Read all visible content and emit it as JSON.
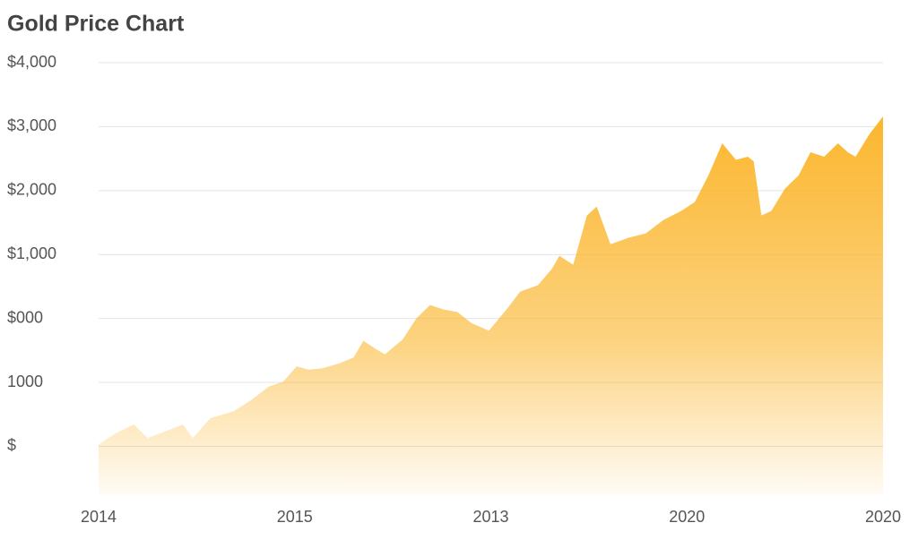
{
  "chart_data": {
    "type": "area",
    "title": "Gold Price Chart",
    "color": "#fbb52a",
    "x": [
      0,
      0.09,
      0.18,
      0.25,
      0.37,
      0.43,
      0.48,
      0.57,
      0.69,
      0.78,
      0.87,
      0.94,
      1.01,
      1.07,
      1.14,
      1.23,
      1.3,
      1.35,
      1.42,
      1.46,
      1.55,
      1.62,
      1.69,
      1.76,
      1.83,
      1.9,
      1.99,
      2.08,
      2.15,
      2.24,
      2.31,
      2.35,
      2.42,
      2.49,
      2.54,
      2.61,
      2.7,
      2.79,
      2.88,
      2.97,
      3.04,
      3.11,
      3.18,
      3.25,
      3.31,
      3.34,
      3.38,
      3.43,
      3.5,
      3.57,
      3.63,
      3.7,
      3.77,
      3.82,
      3.86,
      3.93,
      4
    ],
    "values": [
      -1970,
      -1790,
      -1660,
      -1870,
      -1730,
      -1660,
      -1870,
      -1560,
      -1450,
      -1270,
      -1060,
      -990,
      -750,
      -800,
      -780,
      -700,
      -610,
      -350,
      -490,
      -560,
      -330,
      0,
      210,
      140,
      100,
      -70,
      -190,
      140,
      420,
      520,
      770,
      980,
      840,
      1610,
      1750,
      1160,
      1260,
      1330,
      1540,
      1680,
      1820,
      2240,
      2740,
      2480,
      2530,
      2460,
      1610,
      1680,
      2030,
      2240,
      2600,
      2530,
      2740,
      2600,
      2530,
      2880,
      3160
    ],
    "xlim": [
      0,
      4
    ],
    "xticks": [
      {
        "value": 0,
        "label": "2014"
      },
      {
        "value": 1,
        "label": "2015"
      },
      {
        "value": 2,
        "label": "2013"
      },
      {
        "value": 3,
        "label": "2020"
      },
      {
        "value": 4,
        "label": "2020"
      }
    ],
    "ylim": [
      -2750,
      4000
    ],
    "yticks": [
      {
        "value": 4000,
        "label": "$4,000"
      },
      {
        "value": 3000,
        "label": "$3,000"
      },
      {
        "value": 2000,
        "label": "$2,000"
      },
      {
        "value": 1000,
        "label": "$1,000"
      },
      {
        "value": 0,
        "label": "$000"
      },
      {
        "value": -1000,
        "label": "1000"
      },
      {
        "value": -2000,
        "label": "$"
      }
    ],
    "grid": true
  }
}
